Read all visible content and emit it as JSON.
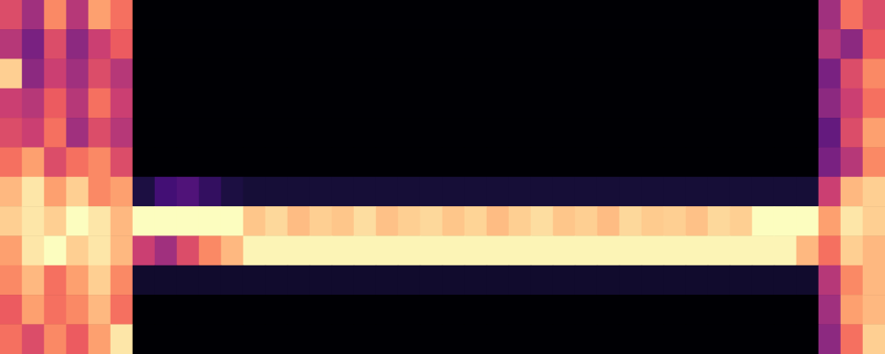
{
  "chart_data": {
    "type": "heatmap",
    "tick_labels": false,
    "zlim": [
      0,
      1
    ],
    "cells": [
      [
        0.6,
        0.45,
        0.75,
        0.5,
        0.8,
        0.7,
        0,
        0,
        0,
        0,
        0,
        0,
        0,
        0,
        0,
        0,
        0,
        0,
        0,
        0,
        0,
        0,
        0,
        0,
        0,
        0,
        0,
        0,
        0,
        0,
        0,
        0,
        0,
        0,
        0,
        0,
        0,
        0.45,
        0.7,
        0.6
      ],
      [
        0.5,
        0.35,
        0.6,
        0.4,
        0.55,
        0.65,
        0,
        0,
        0,
        0,
        0,
        0,
        0,
        0,
        0,
        0,
        0,
        0,
        0,
        0,
        0,
        0,
        0,
        0,
        0,
        0,
        0,
        0,
        0,
        0,
        0,
        0,
        0,
        0,
        0,
        0,
        0,
        0.5,
        0.4,
        0.65
      ],
      [
        0.9,
        0.4,
        0.55,
        0.45,
        0.6,
        0.5,
        0,
        0,
        0,
        0,
        0,
        0,
        0,
        0,
        0,
        0,
        0,
        0,
        0,
        0,
        0,
        0,
        0,
        0,
        0,
        0,
        0,
        0,
        0,
        0,
        0,
        0,
        0,
        0,
        0,
        0,
        0,
        0.35,
        0.6,
        0.75
      ],
      [
        0.55,
        0.5,
        0.65,
        0.5,
        0.7,
        0.55,
        0,
        0,
        0,
        0,
        0,
        0,
        0,
        0,
        0,
        0,
        0,
        0,
        0,
        0,
        0,
        0,
        0,
        0,
        0,
        0,
        0,
        0,
        0,
        0,
        0,
        0,
        0,
        0,
        0,
        0,
        0,
        0.4,
        0.55,
        0.7
      ],
      [
        0.6,
        0.55,
        0.7,
        0.45,
        0.6,
        0.5,
        0,
        0,
        0,
        0,
        0,
        0,
        0,
        0,
        0,
        0,
        0,
        0,
        0,
        0,
        0,
        0,
        0,
        0,
        0,
        0,
        0,
        0,
        0,
        0,
        0,
        0,
        0,
        0,
        0,
        0,
        0,
        0.3,
        0.6,
        0.8
      ],
      [
        0.7,
        0.8,
        0.6,
        0.7,
        0.75,
        0.6,
        0,
        0,
        0,
        0,
        0,
        0,
        0,
        0,
        0,
        0,
        0,
        0,
        0,
        0,
        0,
        0,
        0,
        0,
        0,
        0,
        0,
        0,
        0,
        0,
        0,
        0,
        0,
        0,
        0,
        0,
        0,
        0.35,
        0.5,
        0.75
      ],
      [
        0.85,
        0.95,
        0.8,
        0.9,
        0.75,
        0.8,
        0.12,
        0.22,
        0.25,
        0.18,
        0.12,
        0.1,
        0.1,
        0.1,
        0.1,
        0.1,
        0.1,
        0.1,
        0.1,
        0.1,
        0.1,
        0.1,
        0.1,
        0.1,
        0.1,
        0.1,
        0.1,
        0.1,
        0.1,
        0.1,
        0.1,
        0.1,
        0.1,
        0.1,
        0.1,
        0.1,
        0.1,
        0.55,
        0.85,
        0.9
      ],
      [
        0.9,
        0.95,
        0.9,
        1,
        0.95,
        0.85,
        1,
        1,
        1,
        1,
        1,
        0.88,
        0.92,
        0.86,
        0.9,
        0.88,
        0.93,
        0.87,
        0.9,
        0.92,
        0.88,
        0.91,
        0.86,
        0.9,
        0.93,
        0.88,
        0.9,
        0.86,
        0.92,
        0.89,
        0.9,
        0.87,
        0.92,
        0.9,
        1,
        1,
        1,
        0.8,
        0.95,
        0.9
      ],
      [
        0.8,
        0.95,
        1,
        0.9,
        0.95,
        0.85,
        0.55,
        0.45,
        0.6,
        0.75,
        0.85,
        0.98,
        0.98,
        0.98,
        0.98,
        0.98,
        0.98,
        0.98,
        0.98,
        0.98,
        0.98,
        0.98,
        0.98,
        0.98,
        0.98,
        0.98,
        0.98,
        0.98,
        0.98,
        0.98,
        0.98,
        0.98,
        0.98,
        0.98,
        0.98,
        0.98,
        0.85,
        0.7,
        0.9,
        0.85
      ],
      [
        0.75,
        0.85,
        0.7,
        0.8,
        0.9,
        0.75,
        0.08,
        0.08,
        0.08,
        0.08,
        0.08,
        0.08,
        0.08,
        0.08,
        0.08,
        0.08,
        0.08,
        0.08,
        0.08,
        0.08,
        0.08,
        0.08,
        0.08,
        0.08,
        0.08,
        0.08,
        0.08,
        0.08,
        0.08,
        0.08,
        0.08,
        0.08,
        0.08,
        0.08,
        0.08,
        0.08,
        0.08,
        0.5,
        0.75,
        0.85
      ],
      [
        0.65,
        0.8,
        0.7,
        0.75,
        0.85,
        0.7,
        0,
        0,
        0,
        0,
        0,
        0,
        0,
        0,
        0,
        0,
        0,
        0,
        0,
        0,
        0,
        0,
        0,
        0,
        0,
        0,
        0,
        0,
        0,
        0,
        0,
        0,
        0,
        0,
        0,
        0,
        0,
        0.45,
        0.8,
        0.85
      ],
      [
        0.7,
        0.6,
        0.75,
        0.65,
        0.8,
        0.95,
        0,
        0,
        0,
        0,
        0,
        0,
        0,
        0,
        0,
        0,
        0,
        0,
        0,
        0,
        0,
        0,
        0,
        0,
        0,
        0,
        0,
        0,
        0,
        0,
        0,
        0,
        0,
        0,
        0,
        0,
        0,
        0.4,
        0.7,
        0.9
      ]
    ]
  }
}
